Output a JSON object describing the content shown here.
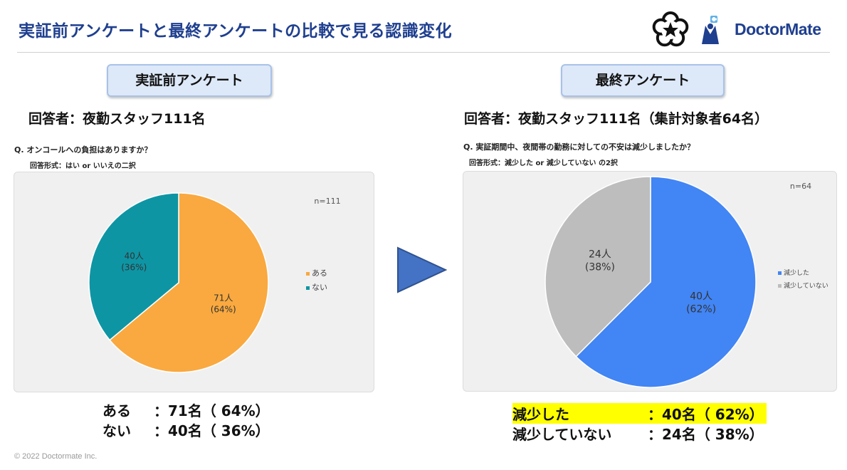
{
  "header": {
    "title": "実証前アンケートと最終アンケートの比較で見る認識変化",
    "brand": "DoctorMate",
    "accent": "#1f3f8f"
  },
  "left": {
    "pill": "実証前アンケート",
    "respondents": "回答者：夜勤スタッフ111名",
    "question": "Q.  オンコールへの負担はありますか？",
    "format": "回答形式：はい or いいえの二択",
    "summary": [
      {
        "label": "ある",
        "value": "：71名（ 64%）"
      },
      {
        "label": "ない",
        "value": "：40名（ 36%）"
      }
    ]
  },
  "right": {
    "pill": "最終アンケート",
    "respondents": "回答者：夜勤スタッフ111名（集計対象者64名）",
    "question": "Q.  実証期間中、夜間帯の勤務に対しての不安は減少しましたか？",
    "format": "回答形式：減少した or 減少していない の2択",
    "summary": [
      {
        "label": "減少した",
        "value": "：40名（ 62%）"
      },
      {
        "label": "減少していない",
        "value": "：24名（ 38%）"
      }
    ]
  },
  "footer": {
    "copyright": "© 2022 Doctormate Inc."
  },
  "chart_data": [
    {
      "type": "pie",
      "n_label": "n=111",
      "categories": [
        "ある",
        "ない"
      ],
      "values": [
        71,
        40
      ],
      "labels": [
        [
          "71人",
          "(64%)"
        ],
        [
          "40人",
          "(36%)"
        ]
      ],
      "colors": [
        "#f9a93f",
        "#0e95a4"
      ],
      "legend_position": "right"
    },
    {
      "type": "pie",
      "n_label": "n=64",
      "categories": [
        "減少した",
        "減少していない"
      ],
      "values": [
        40,
        24
      ],
      "labels": [
        [
          "40人",
          "(62%)"
        ],
        [
          "24人",
          "(38%)"
        ]
      ],
      "colors": [
        "#4285f4",
        "#bdbdbd"
      ],
      "legend_position": "right"
    }
  ]
}
